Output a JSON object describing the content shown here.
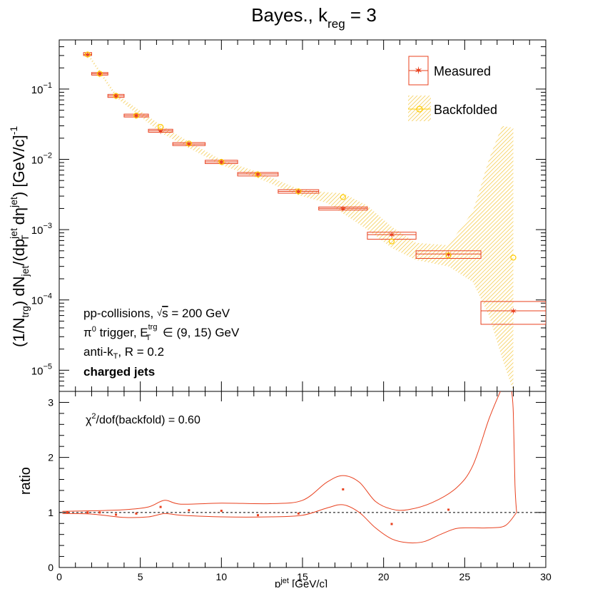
{
  "title": {
    "main": "Bayes., k",
    "sub": "reg",
    "tail": " = 3"
  },
  "chart_data": [
    {
      "type": "scatter",
      "panel": "top",
      "yscale": "log",
      "xlim": [
        0,
        30
      ],
      "ylim": [
        5e-06,
        0.5
      ],
      "ylabel_parts": [
        "(1/N",
        "trg",
        ") dN",
        "jet",
        "/(dp",
        "T",
        "jet",
        " d",
        "η",
        "jet",
        ") [GeV/c]",
        "-1"
      ],
      "ytick_labels": [
        {
          "v": 1e-05,
          "base": "10",
          "exp": "−5"
        },
        {
          "v": 0.0001,
          "base": "10",
          "exp": "−4"
        },
        {
          "v": 0.001,
          "base": "10",
          "exp": "−3"
        },
        {
          "v": 0.01,
          "base": "10",
          "exp": "−2"
        },
        {
          "v": 0.1,
          "base": "10",
          "exp": "−1"
        }
      ],
      "legend_placement": "top-right",
      "series": [
        {
          "name": "Measured",
          "color": "#e8401e",
          "points": [
            {
              "x": 1.75,
              "xlo": 1.5,
              "xhi": 2.0,
              "y": 0.31,
              "ylo": 0.3,
              "yhi": 0.33
            },
            {
              "x": 2.5,
              "xlo": 2.0,
              "xhi": 3.0,
              "y": 0.165,
              "ylo": 0.158,
              "yhi": 0.172
            },
            {
              "x": 3.5,
              "xlo": 3.0,
              "xhi": 4.0,
              "y": 0.08,
              "ylo": 0.076,
              "yhi": 0.084
            },
            {
              "x": 4.75,
              "xlo": 4.0,
              "xhi": 5.5,
              "y": 0.042,
              "ylo": 0.04,
              "yhi": 0.044
            },
            {
              "x": 6.25,
              "xlo": 5.5,
              "xhi": 7.0,
              "y": 0.0255,
              "ylo": 0.0243,
              "yhi": 0.0268
            },
            {
              "x": 8.0,
              "xlo": 7.0,
              "xhi": 9.0,
              "y": 0.0165,
              "ylo": 0.0157,
              "yhi": 0.0173
            },
            {
              "x": 10.0,
              "xlo": 9.0,
              "xhi": 11.0,
              "y": 0.0092,
              "ylo": 0.0087,
              "yhi": 0.0097
            },
            {
              "x": 12.25,
              "xlo": 11.0,
              "xhi": 13.5,
              "y": 0.0062,
              "ylo": 0.0058,
              "yhi": 0.0065
            },
            {
              "x": 14.75,
              "xlo": 13.5,
              "xhi": 16.0,
              "y": 0.0035,
              "ylo": 0.0033,
              "yhi": 0.0037
            },
            {
              "x": 17.5,
              "xlo": 16.0,
              "xhi": 19.0,
              "y": 0.002,
              "ylo": 0.0019,
              "yhi": 0.0021
            },
            {
              "x": 20.5,
              "xlo": 19.0,
              "xhi": 22.0,
              "y": 0.00085,
              "ylo": 0.00073,
              "yhi": 0.00092
            },
            {
              "x": 24.0,
              "xlo": 22.0,
              "xhi": 26.0,
              "y": 0.00045,
              "ylo": 0.00039,
              "yhi": 0.0005
            },
            {
              "x": 28.0,
              "xlo": 26.0,
              "xhi": 30.0,
              "y": 7e-05,
              "ylo": 4.5e-05,
              "yhi": 9.5e-05
            }
          ]
        },
        {
          "name": "Backfolded",
          "color": "#ffcc00",
          "points": [
            {
              "x": 1.75,
              "y": 0.31
            },
            {
              "x": 2.5,
              "y": 0.165
            },
            {
              "x": 3.5,
              "y": 0.08
            },
            {
              "x": 4.75,
              "y": 0.042
            },
            {
              "x": 6.25,
              "y": 0.029
            },
            {
              "x": 8.0,
              "y": 0.0168
            },
            {
              "x": 10.0,
              "y": 0.0092
            },
            {
              "x": 12.25,
              "y": 0.0061
            },
            {
              "x": 14.75,
              "y": 0.0035
            },
            {
              "x": 17.5,
              "y": 0.0029
            },
            {
              "x": 20.5,
              "y": 0.00068
            },
            {
              "x": 24.0,
              "y": 0.00043
            },
            {
              "x": 28.0,
              "y": 0.0004
            }
          ],
          "band": [
            {
              "x": 1.75,
              "lo": 0.3,
              "hi": 0.33
            },
            {
              "x": 3.5,
              "lo": 0.076,
              "hi": 0.085
            },
            {
              "x": 6.25,
              "lo": 0.024,
              "hi": 0.031
            },
            {
              "x": 8.0,
              "lo": 0.0145,
              "hi": 0.0178
            },
            {
              "x": 10.0,
              "lo": 0.0083,
              "hi": 0.0098
            },
            {
              "x": 12.25,
              "lo": 0.0054,
              "hi": 0.0066
            },
            {
              "x": 14.75,
              "lo": 0.0031,
              "hi": 0.0038
            },
            {
              "x": 16.5,
              "lo": 0.0024,
              "hi": 0.0034
            },
            {
              "x": 17.5,
              "lo": 0.0017,
              "hi": 0.0033
            },
            {
              "x": 19.0,
              "lo": 0.001,
              "hi": 0.0022
            },
            {
              "x": 20.5,
              "lo": 0.00055,
              "hi": 0.0011
            },
            {
              "x": 22.0,
              "lo": 0.00037,
              "hi": 0.00065
            },
            {
              "x": 24.0,
              "lo": 0.0003,
              "hi": 0.0006
            },
            {
              "x": 25.5,
              "lo": 0.00018,
              "hi": 0.0018
            },
            {
              "x": 26.5,
              "lo": 6e-05,
              "hi": 0.01
            },
            {
              "x": 27.3,
              "lo": 1.5e-05,
              "hi": 0.03
            },
            {
              "x": 28.0,
              "lo": 5e-06,
              "hi": 0.028
            }
          ]
        }
      ],
      "annotations": [
        "pp-collisions, √s = 200 GeV",
        "π⁰ trigger, E_T^trg ∈ (9, 15) GeV",
        "anti-k_T, R = 0.2",
        "charged jets"
      ]
    },
    {
      "type": "line",
      "panel": "ratio",
      "xlim": [
        0,
        30
      ],
      "ylim": [
        0,
        3.2
      ],
      "xlabel_parts": [
        "p",
        "jet",
        " [GeV/c]"
      ],
      "xtick_labels": [
        "0",
        "5",
        "10",
        "15",
        "20",
        "25",
        "30"
      ],
      "ylabel": "ratio",
      "ytick_labels": [
        "0",
        "1",
        "2",
        "3"
      ],
      "reference_line": 1,
      "ratio_points": [
        {
          "x": 0.5,
          "y": 1.0
        },
        {
          "x": 1.75,
          "y": 1.0
        },
        {
          "x": 2.5,
          "y": 1.0
        },
        {
          "x": 3.5,
          "y": 0.96
        },
        {
          "x": 4.75,
          "y": 0.98
        },
        {
          "x": 6.25,
          "y": 1.1
        },
        {
          "x": 8.0,
          "y": 1.04
        },
        {
          "x": 10.0,
          "y": 1.03
        },
        {
          "x": 12.25,
          "y": 0.95
        },
        {
          "x": 14.75,
          "y": 0.98
        },
        {
          "x": 17.5,
          "y": 1.42
        },
        {
          "x": 20.5,
          "y": 0.79
        },
        {
          "x": 24.0,
          "y": 1.05
        }
      ],
      "upper_envelope": [
        [
          0.2,
          1.02
        ],
        [
          2,
          1.03
        ],
        [
          4,
          1.05
        ],
        [
          5.5,
          1.1
        ],
        [
          6.5,
          1.22
        ],
        [
          7.5,
          1.15
        ],
        [
          10,
          1.17
        ],
        [
          13,
          1.16
        ],
        [
          15,
          1.22
        ],
        [
          16.5,
          1.55
        ],
        [
          17.5,
          1.67
        ],
        [
          18.5,
          1.55
        ],
        [
          19.5,
          1.2
        ],
        [
          20.5,
          1.06
        ],
        [
          21.5,
          1.05
        ],
        [
          23,
          1.18
        ],
        [
          24.5,
          1.45
        ],
        [
          25.5,
          1.85
        ],
        [
          26.5,
          2.7
        ],
        [
          27.2,
          3.2
        ]
      ],
      "upper_envelope_tail": [
        [
          27.9,
          3.2
        ],
        [
          28.0,
          2.8
        ],
        [
          28.1,
          1.5
        ],
        [
          28.2,
          1.0
        ]
      ],
      "lower_envelope": [
        [
          0.2,
          0.98
        ],
        [
          2,
          0.97
        ],
        [
          4,
          0.91
        ],
        [
          5.5,
          0.92
        ],
        [
          6.5,
          0.98
        ],
        [
          7.5,
          0.95
        ],
        [
          10,
          0.92
        ],
        [
          13,
          0.92
        ],
        [
          15,
          0.95
        ],
        [
          16.5,
          1.08
        ],
        [
          17.5,
          1.14
        ],
        [
          18.5,
          1.0
        ],
        [
          19.5,
          0.72
        ],
        [
          20.5,
          0.52
        ],
        [
          21.5,
          0.45
        ],
        [
          22.5,
          0.47
        ],
        [
          23.5,
          0.6
        ],
        [
          24.5,
          0.71
        ],
        [
          25.5,
          0.72
        ],
        [
          26.5,
          0.72
        ],
        [
          27.5,
          0.76
        ],
        [
          28.2,
          1.0
        ]
      ],
      "annotation": "χ²/dof(backfold) = 0.60"
    }
  ]
}
